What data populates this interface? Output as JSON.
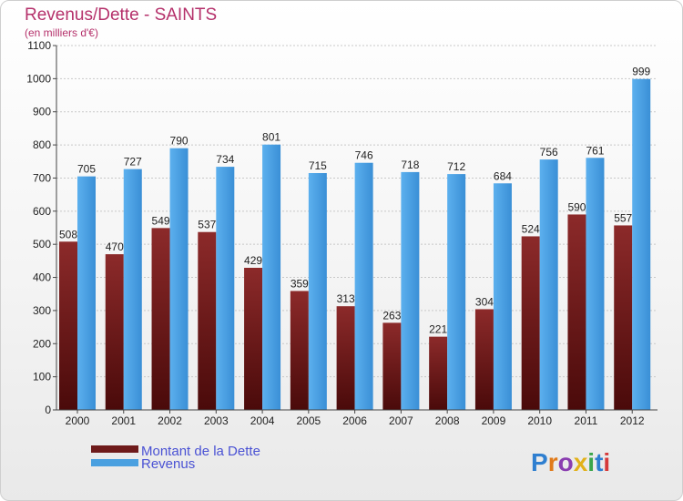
{
  "chart_data": {
    "type": "bar",
    "title": "Revenus/Dette - SAINTS",
    "subtitle": "(en milliers d'€)",
    "categories": [
      "2000",
      "2001",
      "2002",
      "2003",
      "2004",
      "2005",
      "2006",
      "2007",
      "2008",
      "2009",
      "2010",
      "2011",
      "2012"
    ],
    "series": [
      {
        "name": "Montant de la Dette",
        "color": "#6e1a1a",
        "values": [
          508,
          470,
          549,
          537,
          429,
          359,
          313,
          263,
          221,
          304,
          524,
          590,
          557
        ]
      },
      {
        "name": "Revenus",
        "color": "#4aa0e0",
        "values": [
          705,
          727,
          790,
          734,
          801,
          715,
          746,
          718,
          712,
          684,
          756,
          761,
          999
        ]
      }
    ],
    "ylim": [
      0,
      1100
    ],
    "yticks": [
      0,
      100,
      200,
      300,
      400,
      500,
      600,
      700,
      800,
      900,
      1000,
      1100
    ],
    "grid": true,
    "legend_position": "bottom-left"
  },
  "logo": {
    "letters": [
      {
        "ch": "P",
        "color": "#2f7fd0"
      },
      {
        "ch": "r",
        "color": "#e07a1a"
      },
      {
        "ch": "o",
        "color": "#8a3db0"
      },
      {
        "ch": "x",
        "color": "#e2b11a"
      },
      {
        "ch": "i",
        "color": "#3aa64a"
      },
      {
        "ch": "t",
        "color": "#2f7fd0"
      },
      {
        "ch": "i",
        "color": "#d63a3a"
      }
    ]
  }
}
